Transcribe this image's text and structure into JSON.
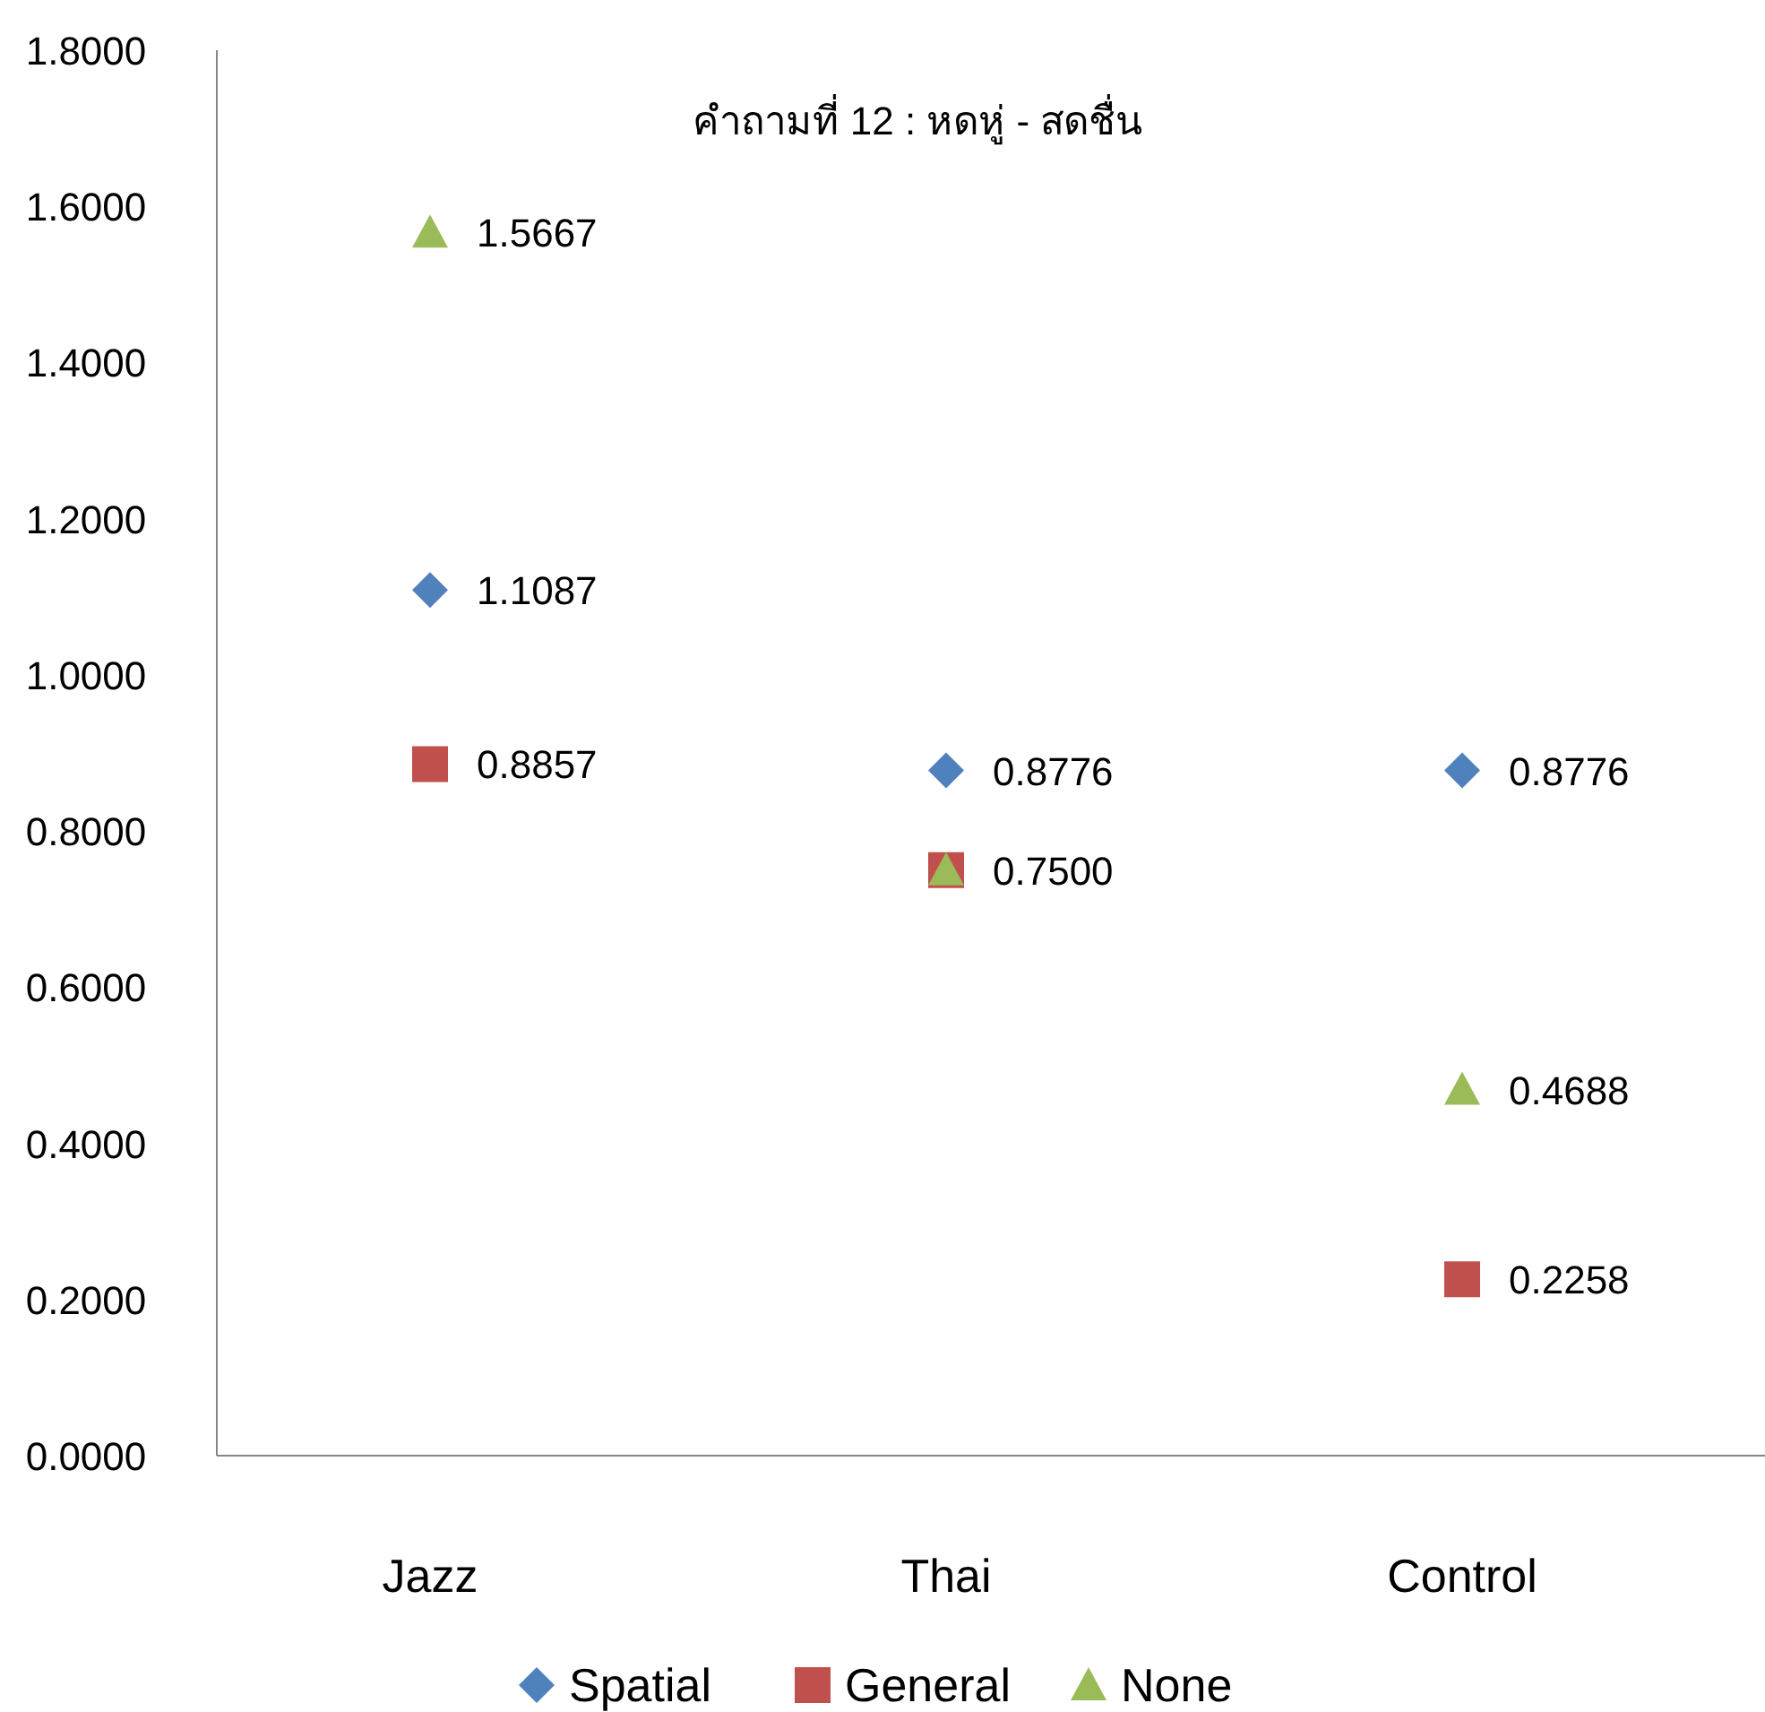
{
  "chart_data": {
    "type": "scatter",
    "title": "คำถามที่ 12  :  หดหู่ - สดชื่น",
    "categories": [
      "Jazz",
      "Thai",
      "Control"
    ],
    "series": [
      {
        "name": "Spatial",
        "color": "#4f81bd",
        "marker": "diamond",
        "values": [
          1.1087,
          0.8776,
          0.8776
        ],
        "value_labels": [
          "1.1087",
          "0.8776",
          "0.8776"
        ]
      },
      {
        "name": "General",
        "color": "#c0504d",
        "marker": "square",
        "values": [
          0.8857,
          0.75,
          0.2258
        ],
        "value_labels": [
          "0.8857",
          null,
          "0.2258"
        ]
      },
      {
        "name": "None",
        "color": "#9bbb59",
        "marker": "triangle",
        "values": [
          1.5667,
          0.75,
          0.4688
        ],
        "value_labels": [
          "1.5667",
          "0.7500",
          "0.4688"
        ]
      }
    ],
    "ylim": [
      0,
      1.8
    ],
    "yticks": [
      {
        "value": 0,
        "label": "0.0000"
      },
      {
        "value": 0.2,
        "label": "0.2000"
      },
      {
        "value": 0.4,
        "label": "0.4000"
      },
      {
        "value": 0.6,
        "label": "0.6000"
      },
      {
        "value": 0.8,
        "label": "0.8000"
      },
      {
        "value": 1.0,
        "label": "1.0000"
      },
      {
        "value": 1.2,
        "label": "1.2000"
      },
      {
        "value": 1.4,
        "label": "1.4000"
      },
      {
        "value": 1.6,
        "label": "1.6000"
      },
      {
        "value": 1.8,
        "label": "1.8000"
      }
    ],
    "grid": false,
    "legend": "bottom"
  }
}
